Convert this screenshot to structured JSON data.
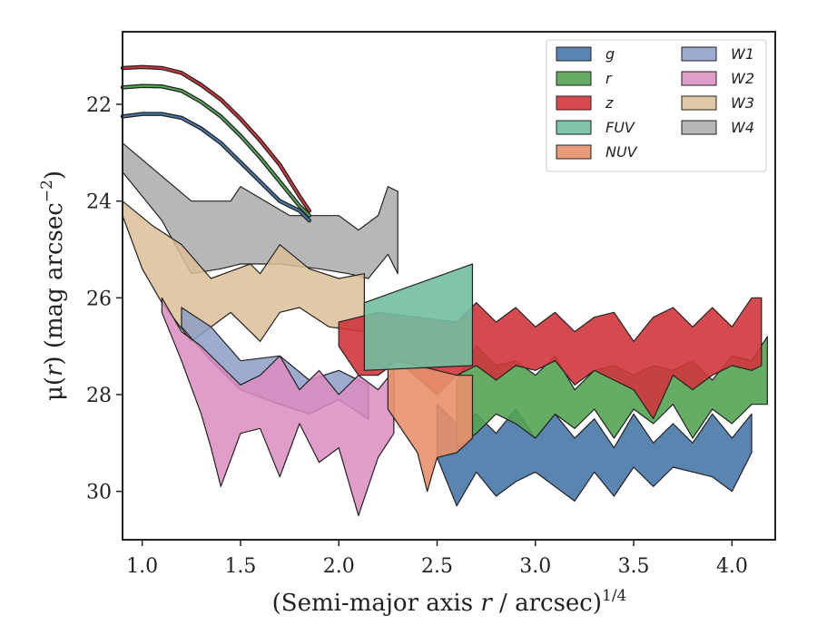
{
  "chart_data": {
    "type": "area",
    "title": "",
    "xlabel_main": "(Semi-major axis ",
    "xlabel_var": "r",
    "xlabel_tail": " / arcsec)",
    "xlabel_sup": "1/4",
    "ylabel_main": "μ(",
    "ylabel_var": "r",
    "ylabel_tail": ") (mag arcsec",
    "ylabel_sup": "−2",
    "ylabel_end": ")",
    "xlim": [
      0.9,
      4.22
    ],
    "ylim": [
      31.0,
      20.5
    ],
    "y_inverted": true,
    "grid": false,
    "legend_position": "top-right",
    "xticks": [
      1.0,
      1.5,
      2.0,
      2.5,
      3.0,
      3.5,
      4.0
    ],
    "xtick_labels": [
      "1.0",
      "1.5",
      "2.0",
      "2.5",
      "3.0",
      "3.5",
      "4.0"
    ],
    "yticks": [
      22,
      24,
      26,
      28,
      30
    ],
    "ytick_labels": [
      "22",
      "24",
      "26",
      "28",
      "30"
    ],
    "legend_order": [
      "g",
      "r",
      "z",
      "FUV",
      "NUV",
      "W1",
      "W2",
      "W3",
      "W4"
    ],
    "series": [
      {
        "name": "W4",
        "color": "#aaaaaa",
        "alpha": 0.85,
        "upper": [
          [
            0.9,
            22.8
          ],
          [
            1.25,
            24.0
          ],
          [
            1.45,
            24.0
          ],
          [
            1.5,
            23.7
          ],
          [
            1.75,
            24.3
          ],
          [
            1.9,
            24.3
          ],
          [
            2.0,
            24.3
          ],
          [
            2.1,
            24.6
          ],
          [
            2.2,
            24.3
          ],
          [
            2.25,
            23.7
          ],
          [
            2.3,
            23.8
          ]
        ],
        "lower": [
          [
            0.9,
            23.4
          ],
          [
            1.1,
            24.4
          ],
          [
            1.25,
            25.5
          ],
          [
            1.4,
            25.4
          ],
          [
            1.5,
            25.3
          ],
          [
            1.7,
            25.3
          ],
          [
            1.9,
            25.4
          ],
          [
            2.05,
            25.5
          ],
          [
            2.15,
            25.6
          ],
          [
            2.25,
            25.1
          ],
          [
            2.3,
            25.5
          ]
        ]
      },
      {
        "name": "W3",
        "color": "#dcbe96",
        "alpha": 0.85,
        "upper": [
          [
            0.9,
            24.0
          ],
          [
            1.05,
            24.5
          ],
          [
            1.2,
            24.9
          ],
          [
            1.35,
            25.6
          ],
          [
            1.55,
            25.3
          ],
          [
            1.6,
            25.5
          ],
          [
            1.7,
            24.9
          ],
          [
            1.85,
            25.4
          ],
          [
            2.0,
            25.6
          ],
          [
            2.13,
            25.5
          ]
        ],
        "lower": [
          [
            0.9,
            24.3
          ],
          [
            1.0,
            25.4
          ],
          [
            1.1,
            26.1
          ],
          [
            1.25,
            26.9
          ],
          [
            1.45,
            26.3
          ],
          [
            1.6,
            26.9
          ],
          [
            1.7,
            26.3
          ],
          [
            1.8,
            26.2
          ],
          [
            1.95,
            26.6
          ],
          [
            2.13,
            26.7
          ]
        ]
      },
      {
        "name": "W1",
        "color": "#8c9ec6",
        "alpha": 0.85,
        "upper": [
          [
            1.2,
            26.2
          ],
          [
            1.35,
            26.6
          ],
          [
            1.5,
            27.3
          ],
          [
            1.7,
            27.2
          ],
          [
            1.85,
            27.7
          ],
          [
            2.0,
            27.5
          ],
          [
            2.15,
            27.8
          ]
        ],
        "lower": [
          [
            1.2,
            26.6
          ],
          [
            1.35,
            27.3
          ],
          [
            1.5,
            27.9
          ],
          [
            1.7,
            28.2
          ],
          [
            1.85,
            28.4
          ],
          [
            2.0,
            28.1
          ],
          [
            2.15,
            28.5
          ]
        ]
      },
      {
        "name": "W2",
        "color": "#dc8cc0",
        "alpha": 0.85,
        "upper": [
          [
            1.1,
            26.0
          ],
          [
            1.2,
            26.7
          ],
          [
            1.3,
            27.0
          ],
          [
            1.4,
            27.4
          ],
          [
            1.5,
            27.8
          ],
          [
            1.6,
            27.6
          ],
          [
            1.7,
            27.2
          ],
          [
            1.8,
            27.9
          ],
          [
            1.9,
            27.5
          ],
          [
            2.0,
            28.0
          ],
          [
            2.1,
            27.6
          ],
          [
            2.2,
            27.9
          ],
          [
            2.28,
            27.5
          ]
        ],
        "lower": [
          [
            1.1,
            26.3
          ],
          [
            1.2,
            27.3
          ],
          [
            1.3,
            28.4
          ],
          [
            1.35,
            29.1
          ],
          [
            1.4,
            29.9
          ],
          [
            1.5,
            28.8
          ],
          [
            1.6,
            28.7
          ],
          [
            1.7,
            29.7
          ],
          [
            1.8,
            28.6
          ],
          [
            1.9,
            29.4
          ],
          [
            2.0,
            29.1
          ],
          [
            2.1,
            30.5
          ],
          [
            2.2,
            29.3
          ],
          [
            2.28,
            28.8
          ]
        ]
      },
      {
        "name": "g",
        "color": "#4878a8",
        "alpha": 0.9,
        "upper": [
          [
            2.5,
            28.2
          ],
          [
            2.6,
            28.6
          ],
          [
            2.7,
            28.4
          ],
          [
            2.8,
            28.8
          ],
          [
            2.9,
            28.3
          ],
          [
            3.0,
            28.9
          ],
          [
            3.1,
            28.4
          ],
          [
            3.2,
            28.9
          ],
          [
            3.3,
            28.5
          ],
          [
            3.4,
            29.1
          ],
          [
            3.5,
            28.4
          ],
          [
            3.6,
            29.0
          ],
          [
            3.7,
            28.6
          ],
          [
            3.8,
            29.0
          ],
          [
            3.9,
            28.4
          ],
          [
            4.0,
            28.9
          ],
          [
            4.1,
            28.4
          ]
        ],
        "lower": [
          [
            2.5,
            29.3
          ],
          [
            2.6,
            30.3
          ],
          [
            2.7,
            29.6
          ],
          [
            2.8,
            30.1
          ],
          [
            2.9,
            29.8
          ],
          [
            3.0,
            29.6
          ],
          [
            3.1,
            29.9
          ],
          [
            3.2,
            30.2
          ],
          [
            3.3,
            29.6
          ],
          [
            3.4,
            30.1
          ],
          [
            3.5,
            29.5
          ],
          [
            3.6,
            29.9
          ],
          [
            3.7,
            29.5
          ],
          [
            3.8,
            29.6
          ],
          [
            3.9,
            29.7
          ],
          [
            4.0,
            30.0
          ],
          [
            4.1,
            29.2
          ]
        ]
      },
      {
        "name": "r",
        "color": "#54a354",
        "alpha": 0.9,
        "upper": [
          [
            2.6,
            27.7
          ],
          [
            2.7,
            27.0
          ],
          [
            2.8,
            27.4
          ],
          [
            2.9,
            27.3
          ],
          [
            3.0,
            27.6
          ],
          [
            3.1,
            27.2
          ],
          [
            3.2,
            27.9
          ],
          [
            3.3,
            27.5
          ],
          [
            3.4,
            27.4
          ],
          [
            3.5,
            27.6
          ],
          [
            3.6,
            27.4
          ],
          [
            3.7,
            27.5
          ],
          [
            3.8,
            27.3
          ],
          [
            3.9,
            27.7
          ],
          [
            4.0,
            27.2
          ],
          [
            4.1,
            27.3
          ],
          [
            4.18,
            26.8
          ]
        ],
        "lower": [
          [
            2.6,
            29.1
          ],
          [
            2.7,
            28.8
          ],
          [
            2.8,
            28.4
          ],
          [
            2.9,
            28.6
          ],
          [
            3.0,
            28.9
          ],
          [
            3.1,
            28.4
          ],
          [
            3.2,
            28.7
          ],
          [
            3.3,
            28.3
          ],
          [
            3.4,
            28.9
          ],
          [
            3.5,
            28.3
          ],
          [
            3.6,
            28.6
          ],
          [
            3.7,
            28.2
          ],
          [
            3.8,
            28.9
          ],
          [
            3.9,
            28.3
          ],
          [
            4.0,
            28.6
          ],
          [
            4.1,
            28.2
          ],
          [
            4.18,
            28.2
          ]
        ]
      },
      {
        "name": "z",
        "color": "#d0363c",
        "alpha": 0.9,
        "upper": [
          [
            2.0,
            26.5
          ],
          [
            2.2,
            26.3
          ],
          [
            2.4,
            26.4
          ],
          [
            2.6,
            26.5
          ],
          [
            2.7,
            26.1
          ],
          [
            2.8,
            26.5
          ],
          [
            2.9,
            26.2
          ],
          [
            3.0,
            26.6
          ],
          [
            3.1,
            26.3
          ],
          [
            3.2,
            26.7
          ],
          [
            3.3,
            26.4
          ],
          [
            3.4,
            26.3
          ],
          [
            3.5,
            26.9
          ],
          [
            3.6,
            26.4
          ],
          [
            3.7,
            26.2
          ],
          [
            3.8,
            26.6
          ],
          [
            3.9,
            26.2
          ],
          [
            4.0,
            26.6
          ],
          [
            4.1,
            26.0
          ],
          [
            4.15,
            26.0
          ]
        ],
        "lower": [
          [
            2.0,
            27.0
          ],
          [
            2.1,
            27.6
          ],
          [
            2.2,
            27.6
          ],
          [
            2.3,
            27.3
          ],
          [
            2.5,
            28.0
          ],
          [
            2.6,
            27.6
          ],
          [
            2.7,
            27.4
          ],
          [
            2.8,
            27.7
          ],
          [
            2.9,
            27.4
          ],
          [
            3.0,
            27.5
          ],
          [
            3.1,
            27.3
          ],
          [
            3.2,
            27.8
          ],
          [
            3.3,
            27.5
          ],
          [
            3.4,
            27.7
          ],
          [
            3.5,
            27.9
          ],
          [
            3.6,
            28.5
          ],
          [
            3.7,
            27.6
          ],
          [
            3.8,
            27.9
          ],
          [
            3.9,
            27.6
          ],
          [
            4.0,
            27.4
          ],
          [
            4.1,
            27.5
          ],
          [
            4.15,
            27.4
          ]
        ]
      },
      {
        "name": "NUV",
        "color": "#e8906c",
        "alpha": 0.9,
        "upper": [
          [
            2.25,
            27.4
          ],
          [
            2.3,
            27.3
          ],
          [
            2.4,
            27.4
          ],
          [
            2.5,
            27.5
          ],
          [
            2.6,
            27.6
          ],
          [
            2.68,
            27.6
          ]
        ],
        "lower": [
          [
            2.25,
            28.3
          ],
          [
            2.3,
            28.6
          ],
          [
            2.4,
            29.2
          ],
          [
            2.45,
            30.0
          ],
          [
            2.5,
            29.3
          ],
          [
            2.6,
            29.2
          ],
          [
            2.68,
            28.9
          ]
        ]
      },
      {
        "name": "FUV",
        "color": "#72bea0",
        "alpha": 0.9,
        "upper": [
          [
            2.13,
            26.1
          ],
          [
            2.68,
            25.3
          ]
        ],
        "lower": [
          [
            2.13,
            27.5
          ],
          [
            2.68,
            27.4
          ]
        ]
      }
    ],
    "outer_curves": [
      {
        "name": "z",
        "color": "#d0363c",
        "x": [
          0.9,
          1.0,
          1.1,
          1.2,
          1.3,
          1.4,
          1.5,
          1.6,
          1.7,
          1.8,
          1.85
        ],
        "y": [
          21.25,
          21.23,
          21.25,
          21.35,
          21.6,
          21.9,
          22.3,
          22.75,
          23.25,
          23.9,
          24.2
        ]
      },
      {
        "name": "r",
        "color": "#54a354",
        "x": [
          0.9,
          1.0,
          1.1,
          1.2,
          1.3,
          1.4,
          1.5,
          1.6,
          1.7,
          1.8,
          1.85
        ],
        "y": [
          21.65,
          21.62,
          21.63,
          21.72,
          21.95,
          22.25,
          22.65,
          23.1,
          23.6,
          24.1,
          24.3
        ]
      },
      {
        "name": "g",
        "color": "#4878a8",
        "x": [
          0.9,
          1.0,
          1.1,
          1.2,
          1.3,
          1.4,
          1.5,
          1.6,
          1.7,
          1.8,
          1.85
        ],
        "y": [
          22.25,
          22.2,
          22.2,
          22.28,
          22.5,
          22.8,
          23.2,
          23.6,
          24.0,
          24.2,
          24.4
        ]
      }
    ]
  }
}
